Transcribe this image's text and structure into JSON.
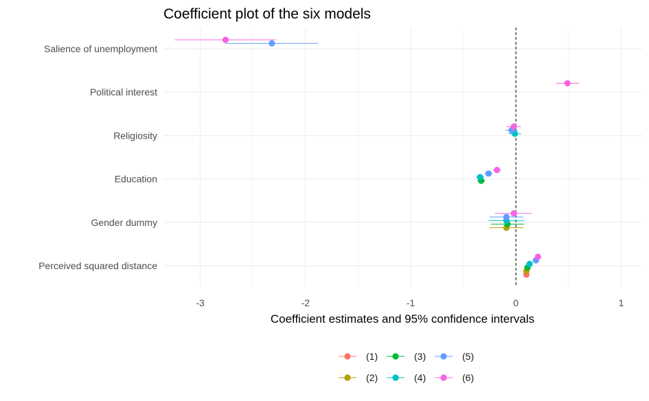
{
  "chart_data": {
    "type": "coefficient_plot",
    "title": "Coefficient plot of the six models",
    "xlabel": "Coefficient estimates and 95% confidence intervals",
    "ylabel": "",
    "xlim": [
      -3.35,
      1.2
    ],
    "xticks": [
      "-3",
      "-2",
      "-1",
      "0",
      "1"
    ],
    "xtick_values": [
      -3,
      -2,
      -1,
      0,
      1
    ],
    "reference_line": {
      "x": 0,
      "style": "dashed"
    },
    "grid": true,
    "legend_position": "bottom",
    "categories": [
      "Salience of unemployment",
      "Political interest",
      "Religiosity",
      "Education",
      "Gender dummy",
      "Perceived squared distance"
    ],
    "series": [
      {
        "name": "(1)",
        "color": "#F8766D",
        "points": [
          {
            "term": "Perceived squared distance",
            "estimate": 0.1,
            "low": 0.08,
            "high": 0.12
          }
        ]
      },
      {
        "name": "(2)",
        "color": "#B79F00",
        "points": [
          {
            "term": "Gender dummy",
            "estimate": -0.09,
            "low": -0.25,
            "high": 0.07
          },
          {
            "term": "Perceived squared distance",
            "estimate": 0.1,
            "low": 0.08,
            "high": 0.13
          }
        ]
      },
      {
        "name": "(3)",
        "color": "#00BA38",
        "points": [
          {
            "term": "Education",
            "estimate": -0.33,
            "low": -0.37,
            "high": -0.29
          },
          {
            "term": "Gender dummy",
            "estimate": -0.08,
            "low": -0.24,
            "high": 0.08
          },
          {
            "term": "Perceived squared distance",
            "estimate": 0.11,
            "low": 0.09,
            "high": 0.14
          }
        ]
      },
      {
        "name": "(4)",
        "color": "#00BFC4",
        "points": [
          {
            "term": "Religiosity",
            "estimate": -0.01,
            "low": -0.07,
            "high": 0.05
          },
          {
            "term": "Education",
            "estimate": -0.34,
            "low": -0.38,
            "high": -0.3
          },
          {
            "term": "Gender dummy",
            "estimate": -0.09,
            "low": -0.26,
            "high": 0.08
          },
          {
            "term": "Perceived squared distance",
            "estimate": 0.13,
            "low": 0.1,
            "high": 0.16
          }
        ]
      },
      {
        "name": "(5)",
        "color": "#619CFF",
        "points": [
          {
            "term": "Salience of unemployment",
            "estimate": -2.32,
            "low": -2.76,
            "high": -1.88
          },
          {
            "term": "Religiosity",
            "estimate": -0.04,
            "low": -0.1,
            "high": 0.02
          },
          {
            "term": "Education",
            "estimate": -0.26,
            "low": -0.3,
            "high": -0.22
          },
          {
            "term": "Gender dummy",
            "estimate": -0.09,
            "low": -0.25,
            "high": 0.07
          },
          {
            "term": "Perceived squared distance",
            "estimate": 0.19,
            "low": 0.16,
            "high": 0.22
          }
        ]
      },
      {
        "name": "(6)",
        "color": "#F564E3",
        "points": [
          {
            "term": "Salience of unemployment",
            "estimate": -2.76,
            "low": -3.24,
            "high": -2.28
          },
          {
            "term": "Political interest",
            "estimate": 0.49,
            "low": 0.38,
            "high": 0.6
          },
          {
            "term": "Religiosity",
            "estimate": -0.02,
            "low": -0.09,
            "high": 0.05
          },
          {
            "term": "Education",
            "estimate": -0.18,
            "low": -0.22,
            "high": -0.14
          },
          {
            "term": "Gender dummy",
            "estimate": -0.02,
            "low": -0.2,
            "high": 0.15
          },
          {
            "term": "Perceived squared distance",
            "estimate": 0.21,
            "low": 0.18,
            "high": 0.24
          }
        ]
      }
    ]
  }
}
